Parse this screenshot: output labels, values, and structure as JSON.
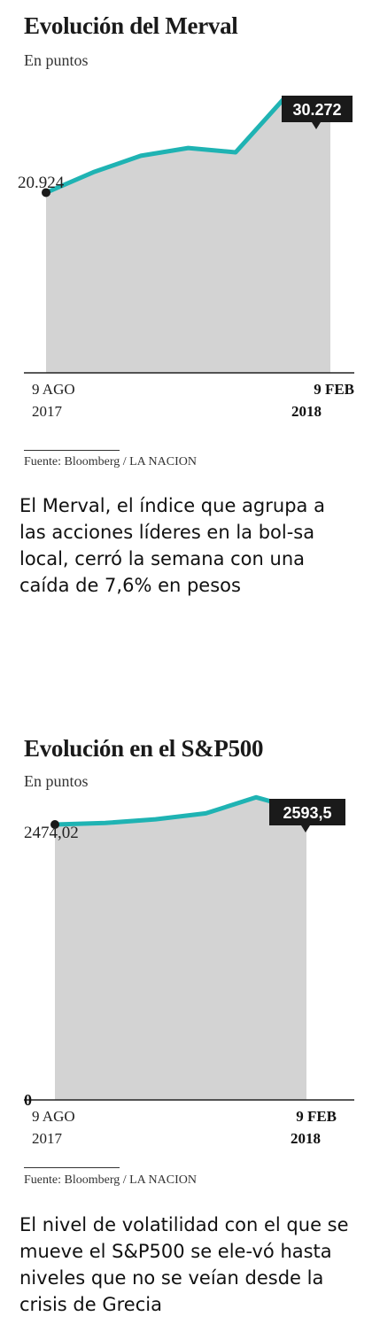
{
  "charts": [
    {
      "title": "Evolución del Merval",
      "subtitle": "En puntos",
      "start_label": "20.924",
      "end_label": "30.272",
      "zero_label": "",
      "x_start": [
        "9 AGO",
        "2017"
      ],
      "x_end": [
        "9 FEB",
        "2018"
      ],
      "source": "Fuente: Bloomberg / LA NACION",
      "description": "El Merval, el índice que agrupa a las acciones líderes en la bol-sa local, cerró la semana con una caída de 7,6% en pesos"
    },
    {
      "title": "Evolución en el S&P500",
      "subtitle": "En puntos",
      "start_label": "2474,02",
      "end_label": "2593,5",
      "zero_label": "0",
      "x_start": [
        "9 AGO",
        "2017"
      ],
      "x_end": [
        "9 FEB",
        "2018"
      ],
      "source": "Fuente: Bloomberg / LA NACION",
      "description": "El nivel de volatilidad con el que se mueve el S&P500 se ele-vó hasta niveles que no se veían desde la crisis de Grecia"
    }
  ],
  "chart_data": [
    {
      "type": "area",
      "title": "Evolución del Merval",
      "subtitle": "En puntos",
      "x": [
        "9 AGO 2017",
        "",
        "",
        "",
        "",
        "",
        "9 FEB 2018"
      ],
      "values": [
        20924,
        23300,
        25200,
        26100,
        25600,
        31700,
        30272
      ],
      "ylim": [
        0,
        33000
      ],
      "colors": {
        "line": "#1fb3b3",
        "fill": "#d3d3d3",
        "axis": "#222222",
        "label_box": "#1a1a1a"
      }
    },
    {
      "type": "area",
      "title": "Evolución en el S&P500",
      "subtitle": "En puntos",
      "x": [
        "9 AGO 2017",
        "",
        "",
        "",
        "",
        "9 FEB 2018"
      ],
      "values": [
        2474.02,
        2487,
        2521,
        2574,
        2718,
        2593.5
      ],
      "ylim": [
        0,
        2800
      ],
      "colors": {
        "line": "#1fb3b3",
        "fill": "#d3d3d3",
        "axis": "#222222",
        "label_box": "#1a1a1a"
      }
    }
  ]
}
